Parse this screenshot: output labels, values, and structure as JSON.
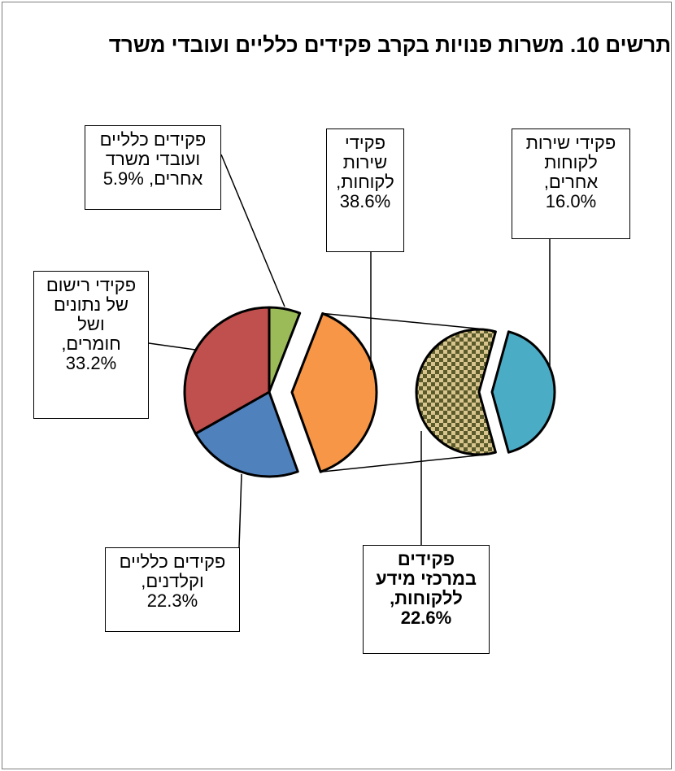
{
  "chart_data": {
    "type": "pie",
    "subtype": "pie-of-pie",
    "title": "תרשים 10. משרות פנויות בקרב פקידים כלליים ועובדי משרד",
    "main_pie": [
      {
        "name": "פקידים כלליים ועובדי משרד אחרים",
        "value": 5.9,
        "label": "פקידים כלליים\nועובדי משרד\nאחרים, 5.9%",
        "color": "#9bbb59"
      },
      {
        "name": "פקידי שירות לקוחות",
        "value": 38.6,
        "label": "פקידי\nשירות\nלקוחות,\n38.6%",
        "color": "#f79646",
        "exploded": true
      },
      {
        "name": "פקידים כלליים וקלדנים",
        "value": 22.3,
        "label": "פקידים כלליים\nוקלדנים,\n22.3%",
        "color": "#4f81bd"
      },
      {
        "name": "פקידי רישום של נתונים ושל חומרים",
        "value": 33.2,
        "label": "פקידי רישום\nשל נתונים\nושל\nחומרים,\n33.2%",
        "color": "#c0504d"
      }
    ],
    "secondary_pie": [
      {
        "name": "פקידים במרכזי מידע ללקוחות",
        "value": 22.6,
        "label": "פקידים\nבמרכזי מידע\nללקוחות,\n22.6%",
        "color": "#7a7a3a",
        "pattern": "checker",
        "bold": true
      },
      {
        "name": "פקידי שירות לקוחות אחרים",
        "value": 16.0,
        "label": "פקידי שירות\nלקוחות\nאחרים,\n16.0%",
        "color": "#4bacc6"
      }
    ]
  }
}
